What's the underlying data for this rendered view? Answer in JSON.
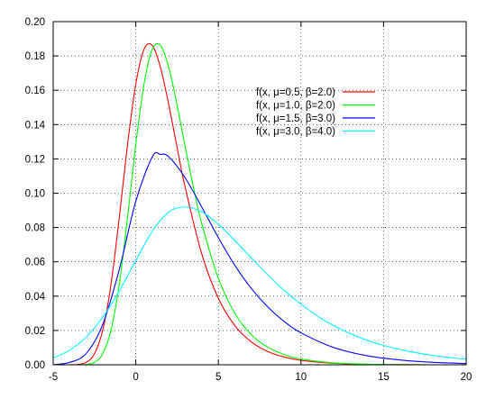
{
  "chart_data": {
    "type": "line",
    "title": "",
    "xlabel": "",
    "ylabel": "",
    "xlim": [
      -5,
      20
    ],
    "ylim": [
      0,
      0.2
    ],
    "x_ticks": [
      {
        "value": -5,
        "label": "-5"
      },
      {
        "value": 0,
        "label": "0"
      },
      {
        "value": 5,
        "label": "5"
      },
      {
        "value": 10,
        "label": "10"
      },
      {
        "value": 15,
        "label": "15"
      },
      {
        "value": 20,
        "label": "20"
      }
    ],
    "y_ticks": [
      {
        "value": 0,
        "label": "0.00"
      },
      {
        "value": 0.02,
        "label": "0.02"
      },
      {
        "value": 0.04,
        "label": "0.04"
      },
      {
        "value": 0.06,
        "label": "0.06"
      },
      {
        "value": 0.08,
        "label": "0.08"
      },
      {
        "value": 0.1,
        "label": "0.10"
      },
      {
        "value": 0.12,
        "label": "0.12"
      },
      {
        "value": 0.14,
        "label": "0.14"
      },
      {
        "value": 0.16,
        "label": "0.16"
      },
      {
        "value": 0.18,
        "label": "0.18"
      },
      {
        "value": 0.2,
        "label": "0.20"
      }
    ],
    "grid": true,
    "legend_position": "top-right",
    "series": [
      {
        "name": "f(x, μ=0.5, β=2.0)",
        "color": "#ff0000",
        "x": [
          -5,
          -4,
          -3.5,
          -3,
          -2.5,
          -2,
          -1.5,
          -1,
          -0.5,
          0,
          0.5,
          1,
          1.5,
          2,
          2.5,
          3,
          4,
          5,
          6,
          7,
          8,
          9,
          10,
          12,
          14,
          16,
          18,
          20
        ],
        "y": [
          0.0,
          0.0,
          0.0002,
          0.0014,
          0.0064,
          0.0202,
          0.0469,
          0.0858,
          0.1283,
          0.1636,
          0.1839,
          0.1861,
          0.1731,
          0.1514,
          0.1267,
          0.103,
          0.0644,
          0.0387,
          0.0228,
          0.0133,
          0.0077,
          0.0045,
          0.0026,
          0.0009,
          0.0003,
          0.0001,
          0.0,
          0.0
        ]
      },
      {
        "name": "f(x, μ=1.0, β=2.0)",
        "color": "#00ff00",
        "x": [
          -5,
          -4,
          -3.5,
          -3,
          -2.5,
          -2,
          -1.5,
          -1,
          -0.5,
          0,
          0.5,
          1,
          1.5,
          2,
          2.5,
          3,
          3.5,
          4,
          5,
          6,
          7,
          8,
          9,
          10,
          12,
          14,
          16,
          18,
          20
        ],
        "y": [
          0.0,
          0.0,
          0.0,
          0.0002,
          0.0014,
          0.0064,
          0.0202,
          0.0469,
          0.0858,
          0.1283,
          0.1636,
          0.1839,
          0.1861,
          0.1731,
          0.1514,
          0.1267,
          0.103,
          0.082,
          0.0504,
          0.03,
          0.0175,
          0.0102,
          0.0059,
          0.0034,
          0.0011,
          0.0004,
          0.0001,
          0.0,
          0.0
        ]
      },
      {
        "name": "f(x, μ=1.5, β=3.0)",
        "color": "#0000ff",
        "x": [
          -5,
          -4,
          -3,
          -2,
          -1,
          0,
          1,
          1.5,
          2,
          3,
          4,
          5,
          6,
          7,
          8,
          9,
          10,
          12,
          14,
          16,
          18,
          20
        ],
        "y": [
          0.0,
          0.0014,
          0.0066,
          0.0235,
          0.0555,
          0.0953,
          0.1212,
          0.1226,
          0.1212,
          0.1088,
          0.0918,
          0.0741,
          0.0579,
          0.0444,
          0.0336,
          0.0251,
          0.0186,
          0.01,
          0.0053,
          0.0028,
          0.0014,
          0.0007
        ]
      },
      {
        "name": "f(x, μ=3.0, β=4.0)",
        "color": "#00ffff",
        "x": [
          -5,
          -4,
          -3,
          -2,
          -1,
          0,
          1,
          2,
          3,
          4,
          5,
          6,
          7,
          8,
          9,
          10,
          11,
          12,
          13,
          14,
          15,
          16,
          17,
          18,
          19,
          20
        ],
        "y": [
          0.004,
          0.0085,
          0.0162,
          0.0277,
          0.0431,
          0.0607,
          0.0778,
          0.0891,
          0.092,
          0.0891,
          0.0819,
          0.0724,
          0.0622,
          0.0523,
          0.0432,
          0.0353,
          0.0284,
          0.0227,
          0.0181,
          0.0143,
          0.0113,
          0.0089,
          0.007,
          0.0054,
          0.0042,
          0.0033
        ]
      }
    ]
  }
}
